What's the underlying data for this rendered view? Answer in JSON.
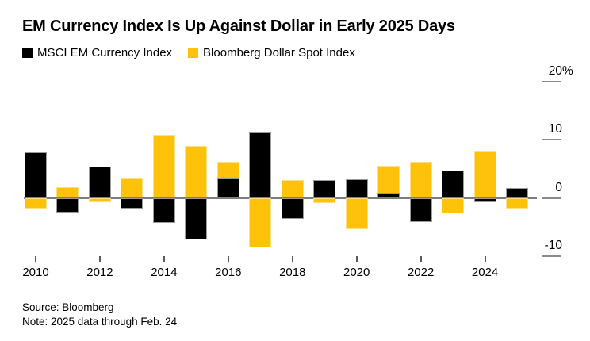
{
  "title": "EM Currency Index Is Up Against Dollar in Early 2025 Days",
  "legend": [
    {
      "label": "MSCI EM Currency Index",
      "color": "#000000"
    },
    {
      "label": "Bloomberg Dollar Spot Index",
      "color": "#fec20b"
    }
  ],
  "footer": {
    "source": "Source: Bloomberg",
    "note": "Note: 2025 data through Feb. 24"
  },
  "colors": {
    "msci_black": "#000000",
    "dollar_yellow": "#fec20b",
    "axis_gray": "#7d7d7d",
    "background": "#ffffff"
  },
  "chart_data": {
    "type": "bar",
    "title": "EM Currency Index Is Up Against Dollar in Early 2025 Days",
    "categories": [
      2010,
      2011,
      2012,
      2013,
      2014,
      2015,
      2016,
      2017,
      2018,
      2019,
      2020,
      2021,
      2022,
      2023,
      2024,
      2025
    ],
    "series": [
      {
        "name": "MSCI EM Currency Index",
        "color": "#000000",
        "values": [
          7.8,
          -2.5,
          5.4,
          -1.9,
          -4.3,
          -7.1,
          3.4,
          11.3,
          -3.6,
          3.1,
          3.2,
          0.7,
          -4.2,
          4.7,
          -0.7,
          1.7
        ]
      },
      {
        "name": "Bloomberg Dollar Spot Index",
        "color": "#fec20b",
        "values": [
          -1.8,
          1.8,
          -0.7,
          3.3,
          10.8,
          8.9,
          6.2,
          -8.5,
          3.1,
          -0.9,
          -5.4,
          5.5,
          6.2,
          -2.6,
          8.0,
          -1.8
        ]
      }
    ],
    "xlabel": "",
    "ylabel": "",
    "unit": "%",
    "ylim": [
      -12,
      22
    ],
    "grid": false,
    "legend_position": "top-left",
    "bars_overlap": "both series drawn at same x position, black in front",
    "y_ticks": [
      {
        "value": 20,
        "label": "20",
        "suffix": "%"
      },
      {
        "value": 10,
        "label": "10",
        "suffix": ""
      },
      {
        "value": 0,
        "label": "0",
        "suffix": ""
      },
      {
        "value": -10,
        "label": "-10",
        "suffix": ""
      }
    ],
    "x_tick_years": [
      2010,
      2012,
      2014,
      2016,
      2018,
      2020,
      2022,
      2024
    ]
  }
}
